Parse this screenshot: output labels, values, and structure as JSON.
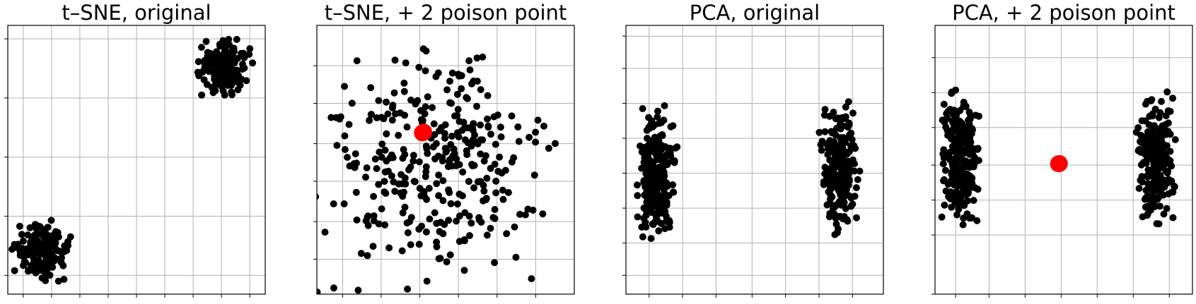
{
  "chart_data": [
    {
      "type": "scatter",
      "title": "t–SNE, original",
      "grid": true,
      "xlim": [
        0,
        100
      ],
      "ylim": [
        0,
        100
      ],
      "xticks": [
        6,
        17,
        28,
        39,
        50,
        61,
        72,
        83,
        94
      ],
      "yticks": [
        7,
        29,
        51,
        73,
        95
      ],
      "clusters": [
        {
          "cx": 13,
          "cy": 16,
          "sx": 5,
          "sy": 5,
          "n": 160,
          "r": 8,
          "color": "#000000"
        },
        {
          "cx": 84,
          "cy": 84,
          "sx": 5,
          "sy": 5,
          "n": 160,
          "r": 8,
          "color": "#000000"
        }
      ],
      "poison_points": []
    },
    {
      "type": "scatter",
      "title": "t–SNE, + 2 poison point",
      "grid": true,
      "xlim": [
        0,
        100
      ],
      "ylim": [
        0,
        100
      ],
      "xticks": [
        10,
        25,
        40,
        55,
        70,
        85
      ],
      "yticks": [
        13,
        27,
        42,
        56,
        71,
        85
      ],
      "clusters": [
        {
          "cx": 47,
          "cy": 48,
          "sx": 21,
          "sy": 21,
          "n": 330,
          "r": 8,
          "color": "#000000"
        }
      ],
      "poison_points": [
        {
          "x": 41,
          "y": 60,
          "r": 12,
          "color": "#ff0000"
        },
        {
          "x": 41.5,
          "y": 60.3,
          "r": 12,
          "color": "#ff0000"
        }
      ]
    },
    {
      "type": "scatter",
      "title": "PCA, original",
      "grid": true,
      "xlim": [
        0,
        100
      ],
      "ylim": [
        0,
        100
      ],
      "xticks": [
        9,
        22,
        35,
        49,
        62,
        75,
        88
      ],
      "yticks": [
        7,
        19,
        32,
        45,
        58,
        71,
        84,
        96
      ],
      "clusters": [
        {
          "cx": 12,
          "cy": 45,
          "sx": 3.5,
          "sy": 11,
          "n": 230,
          "r": 8,
          "color": "#000000"
        },
        {
          "cx": 83,
          "cy": 47,
          "sx": 3.5,
          "sy": 11,
          "n": 230,
          "r": 8,
          "color": "#000000"
        }
      ],
      "poison_points": []
    },
    {
      "type": "scatter",
      "title": "PCA, + 2 poison point",
      "grid": true,
      "xlim": [
        0,
        100
      ],
      "ylim": [
        0,
        100
      ],
      "xticks": [
        8,
        21,
        35,
        49,
        63,
        77,
        91
      ],
      "yticks": [
        0,
        22,
        35,
        48,
        62,
        75,
        88
      ],
      "clusters": [
        {
          "cx": 10,
          "cy": 51,
          "sx": 3.5,
          "sy": 11,
          "n": 240,
          "r": 8,
          "color": "#000000"
        },
        {
          "cx": 86,
          "cy": 50,
          "sx": 3.5,
          "sy": 11,
          "n": 240,
          "r": 8,
          "color": "#000000"
        }
      ],
      "poison_points": [
        {
          "x": 48,
          "y": 48.5,
          "r": 12,
          "color": "#ff0000"
        },
        {
          "x": 48.3,
          "y": 48.6,
          "r": 12,
          "color": "#ff0000"
        }
      ]
    }
  ]
}
